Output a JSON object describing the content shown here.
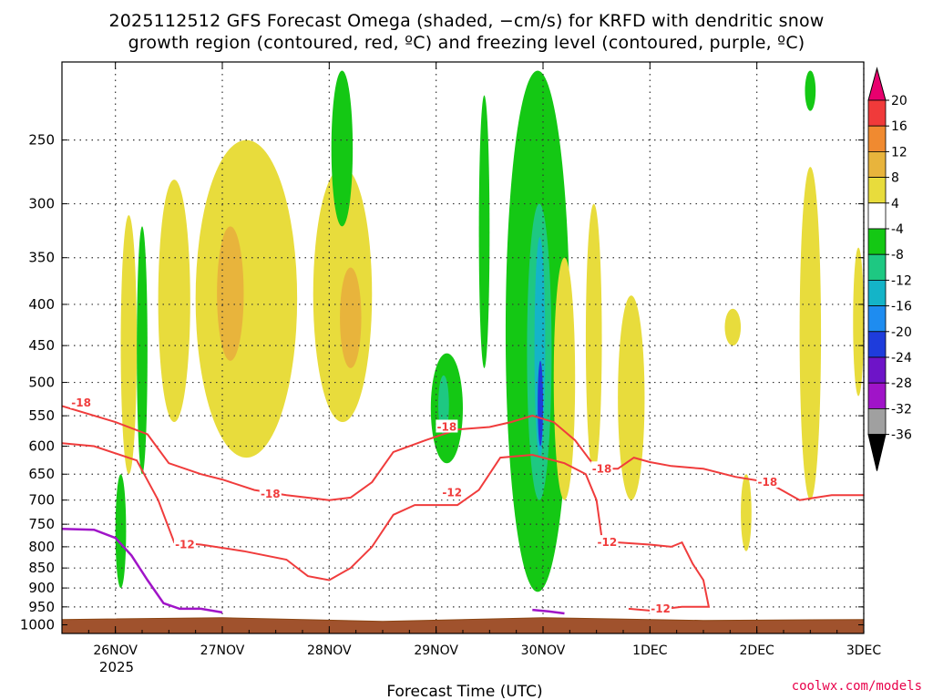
{
  "chart_data": {
    "type": "heatmap",
    "title_line1": "2025112512 GFS Forecast Omega (shaded, −cm/s) for KRFD with dendritic snow",
    "title_line2": "growth region (contoured, red, ºC) and freezing level (contoured, purple, ºC)",
    "xlabel": "Forecast Time (UTC)",
    "ylabel": "",
    "x_ticks": [
      "26NOV",
      "27NOV",
      "28NOV",
      "29NOV",
      "30NOV",
      "1DEC",
      "2DEC",
      "3DEC"
    ],
    "x_year_label": "2025",
    "x_range_days": [
      -0.5,
      7.0
    ],
    "y_ticks": [
      250,
      300,
      350,
      400,
      450,
      500,
      550,
      600,
      650,
      700,
      750,
      800,
      850,
      900,
      950,
      1000
    ],
    "y_range_hpa": [
      200,
      1025
    ],
    "y_scale": "log-pressure (reversed)",
    "grid": true,
    "colorbar": {
      "levels": [
        20,
        16,
        12,
        8,
        4,
        -4,
        -8,
        -12,
        -16,
        -20,
        -24,
        -28,
        -32,
        -36
      ],
      "colors": [
        "#e8006e",
        "#f03a3a",
        "#f08a30",
        "#e8b43c",
        "#e8dc3c",
        "#ffffff",
        "#14c814",
        "#1ec882",
        "#14b4c8",
        "#1e8cf0",
        "#1e3cdc",
        "#6e14c8",
        "#a014c8",
        "#a0a0a0",
        "#000000"
      ]
    },
    "omega_regions": [
      {
        "x": [
          0.05,
          0.2
        ],
        "p": [
          310,
          650
        ],
        "value": 6
      },
      {
        "x": [
          0.4,
          0.7
        ],
        "p": [
          280,
          560
        ],
        "value": 6
      },
      {
        "x": [
          0.75,
          1.7
        ],
        "p": [
          250,
          620
        ],
        "value": 6
      },
      {
        "x": [
          0.95,
          1.2
        ],
        "p": [
          320,
          470
        ],
        "value": 10
      },
      {
        "x": [
          1.85,
          2.4
        ],
        "p": [
          270,
          560
        ],
        "value": 6
      },
      {
        "x": [
          2.1,
          2.3
        ],
        "p": [
          360,
          480
        ],
        "value": 10
      },
      {
        "x": [
          0.2,
          0.3
        ],
        "p": [
          320,
          650
        ],
        "value": -6
      },
      {
        "x": [
          0.0,
          0.1
        ],
        "p": [
          650,
          900
        ],
        "value": -6
      },
      {
        "x": [
          2.02,
          2.22
        ],
        "p": [
          205,
          320
        ],
        "value": -6
      },
      {
        "x": [
          2.95,
          3.25
        ],
        "p": [
          460,
          630
        ],
        "value": -6
      },
      {
        "x": [
          3.02,
          3.12
        ],
        "p": [
          490,
          580
        ],
        "value": -10
      },
      {
        "x": [
          3.4,
          3.5
        ],
        "p": [
          220,
          480
        ],
        "value": -6
      },
      {
        "x": [
          3.65,
          4.25
        ],
        "p": [
          205,
          910
        ],
        "value": -6
      },
      {
        "x": [
          3.85,
          4.08
        ],
        "p": [
          300,
          700
        ],
        "value": -10
      },
      {
        "x": [
          3.92,
          4.02
        ],
        "p": [
          330,
          620
        ],
        "value": -14
      },
      {
        "x": [
          3.95,
          4.0
        ],
        "p": [
          470,
          600
        ],
        "value": -22
      },
      {
        "x": [
          4.1,
          4.3
        ],
        "p": [
          350,
          700
        ],
        "value": 6
      },
      {
        "x": [
          4.4,
          4.55
        ],
        "p": [
          300,
          650
        ],
        "value": 6
      },
      {
        "x": [
          4.7,
          4.95
        ],
        "p": [
          390,
          700
        ],
        "value": 6
      },
      {
        "x": [
          5.7,
          5.85
        ],
        "p": [
          405,
          450
        ],
        "value": 6
      },
      {
        "x": [
          5.85,
          5.95
        ],
        "p": [
          650,
          810
        ],
        "value": 6
      },
      {
        "x": [
          6.4,
          6.6
        ],
        "p": [
          270,
          700
        ],
        "value": 6
      },
      {
        "x": [
          6.9,
          7.0
        ],
        "p": [
          340,
          520
        ],
        "value": 6
      },
      {
        "x": [
          6.45,
          6.55
        ],
        "p": [
          205,
          230
        ],
        "value": -6
      }
    ],
    "dgz_contours": [
      {
        "level": -18,
        "points": [
          [
            -0.5,
            535
          ],
          [
            0,
            560
          ],
          [
            0.3,
            580
          ],
          [
            0.5,
            630
          ],
          [
            0.8,
            650
          ],
          [
            1.0,
            660
          ],
          [
            1.3,
            680
          ],
          [
            1.6,
            690
          ],
          [
            2.0,
            700
          ],
          [
            2.2,
            695
          ],
          [
            2.4,
            665
          ],
          [
            2.6,
            610
          ],
          [
            2.9,
            590
          ],
          [
            3.2,
            572
          ],
          [
            3.5,
            568
          ],
          [
            3.7,
            560
          ],
          [
            3.9,
            550
          ],
          [
            4.1,
            560
          ],
          [
            4.3,
            590
          ],
          [
            4.5,
            640
          ],
          [
            4.7,
            640
          ],
          [
            4.85,
            620
          ],
          [
            5.0,
            628
          ],
          [
            5.2,
            635
          ],
          [
            5.5,
            640
          ],
          [
            5.8,
            655
          ],
          [
            6.1,
            665
          ],
          [
            6.4,
            700
          ],
          [
            6.7,
            690
          ],
          [
            7.0,
            690
          ]
        ]
      },
      {
        "level": -12,
        "points": [
          [
            -0.5,
            595
          ],
          [
            -0.2,
            600
          ],
          [
            0.2,
            625
          ],
          [
            0.4,
            700
          ],
          [
            0.55,
            790
          ],
          [
            0.8,
            795
          ],
          [
            1.2,
            810
          ],
          [
            1.6,
            830
          ],
          [
            1.8,
            870
          ],
          [
            2.0,
            880
          ],
          [
            2.2,
            850
          ],
          [
            2.4,
            800
          ],
          [
            2.6,
            730
          ],
          [
            2.8,
            710
          ],
          [
            3.2,
            710
          ],
          [
            3.4,
            680
          ],
          [
            3.6,
            620
          ],
          [
            3.9,
            615
          ],
          [
            4.2,
            630
          ],
          [
            4.4,
            650
          ],
          [
            4.5,
            700
          ],
          [
            4.55,
            780
          ],
          [
            4.7,
            790
          ],
          [
            5.0,
            795
          ],
          [
            5.2,
            800
          ],
          [
            5.3,
            790
          ],
          [
            5.4,
            840
          ],
          [
            5.5,
            880
          ],
          [
            5.55,
            950
          ],
          [
            5.3,
            950
          ],
          [
            5.0,
            960
          ],
          [
            4.8,
            955
          ]
        ]
      }
    ],
    "contour_labels": [
      {
        "text": "-18",
        "x": -0.32,
        "p": 530
      },
      {
        "text": "-18",
        "x": 1.45,
        "p": 688
      },
      {
        "text": "-18",
        "x": 3.1,
        "p": 568
      },
      {
        "text": "-18",
        "x": 4.55,
        "p": 640
      },
      {
        "text": "-18",
        "x": 6.1,
        "p": 665
      },
      {
        "text": "-12",
        "x": 0.65,
        "p": 795
      },
      {
        "text": "-12",
        "x": 3.15,
        "p": 685
      },
      {
        "text": "-12",
        "x": 4.6,
        "p": 790
      },
      {
        "text": "-12",
        "x": 5.1,
        "p": 955
      }
    ],
    "freezing_level": [
      [
        -0.5,
        760
      ],
      [
        -0.2,
        762
      ],
      [
        0,
        780
      ],
      [
        0.15,
        820
      ],
      [
        0.3,
        880
      ],
      [
        0.45,
        940
      ],
      [
        0.6,
        955
      ],
      [
        0.8,
        955
      ],
      [
        1.0,
        965
      ]
    ],
    "freezing_level_b": [
      [
        3.9,
        958
      ],
      [
        4.05,
        962
      ],
      [
        4.2,
        968
      ]
    ],
    "terrain_top_hpa": 985
  },
  "footer": {
    "credit": "coolwx.com/models"
  }
}
